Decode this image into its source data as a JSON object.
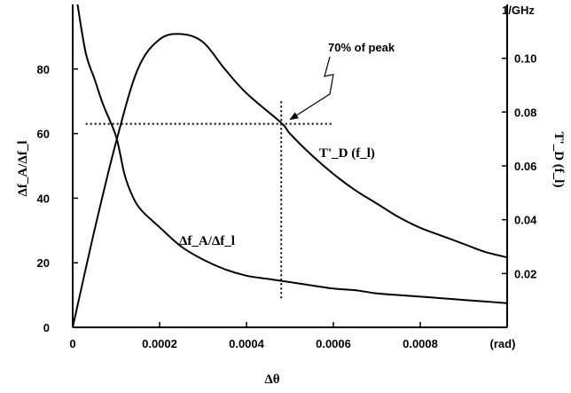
{
  "chart_data": {
    "type": "line",
    "x_axis": {
      "label": "Δθ",
      "unit": "(rad)",
      "range": [
        0,
        0.001
      ],
      "ticks": [
        0,
        0.0002,
        0.0004,
        0.0006,
        0.0008
      ],
      "tick_labels": [
        "0",
        "0.0002",
        "0.0004",
        "0.0006",
        "0.0008"
      ]
    },
    "y_left": {
      "label": "Δf_A/Δf_l",
      "range": [
        0,
        100
      ],
      "ticks": [
        0,
        20,
        40,
        60,
        80
      ],
      "tick_labels": [
        "0",
        "20",
        "40",
        "60",
        "80"
      ]
    },
    "y_right": {
      "label": "T'_D (f_l)",
      "unit": "1/GHz",
      "range": [
        0,
        0.12
      ],
      "ticks": [
        0.02,
        0.04,
        0.06,
        0.08,
        0.1
      ],
      "tick_labels": [
        "0.02",
        "0.04",
        "0.06",
        "0.08",
        "0.10"
      ]
    },
    "series": [
      {
        "name": "Δf_A/Δf_l",
        "axis": "left",
        "x": [
          1e-05,
          3e-05,
          5e-05,
          7e-05,
          0.0001,
          0.00012,
          0.00014,
          0.00016,
          0.0002,
          0.00025,
          0.0003,
          0.00035,
          0.0004,
          0.00045,
          0.0005,
          0.00055,
          0.0006,
          0.00065,
          0.0007,
          0.00075,
          0.0008,
          0.00085,
          0.0009,
          0.00095,
          0.001
        ],
        "values": [
          101,
          85,
          77,
          69,
          59,
          47,
          40,
          36,
          31,
          25,
          21,
          18,
          16,
          15,
          14,
          13,
          12,
          11.5,
          10.5,
          10,
          9.5,
          9,
          8.5,
          8,
          7.5
        ]
      },
      {
        "name": "T'_D (f_l)",
        "axis": "right",
        "x": [
          0,
          5e-05,
          0.0001,
          0.00015,
          0.0002,
          0.00025,
          0.0003,
          0.00035,
          0.0004,
          0.00048,
          0.0005,
          0.00055,
          0.0006,
          0.00065,
          0.0007,
          0.00075,
          0.0008,
          0.00085,
          0.0009,
          0.00095,
          0.001
        ],
        "values": [
          0,
          0.036,
          0.069,
          0.096,
          0.107,
          0.109,
          0.106,
          0.096,
          0.087,
          0.076,
          0.072,
          0.064,
          0.057,
          0.051,
          0.046,
          0.041,
          0.037,
          0.034,
          0.031,
          0.028,
          0.026
        ]
      }
    ],
    "annotations": {
      "peak_note": "70% of peak",
      "h_ref_y_left": 63,
      "h_ref_x": [
        3e-05,
        0.0006
      ],
      "v_ref_x": 0.00048,
      "v_ref_y_left": [
        9,
        70
      ],
      "arrow_target": [
        0.00048,
        63
      ]
    },
    "grid": false
  }
}
